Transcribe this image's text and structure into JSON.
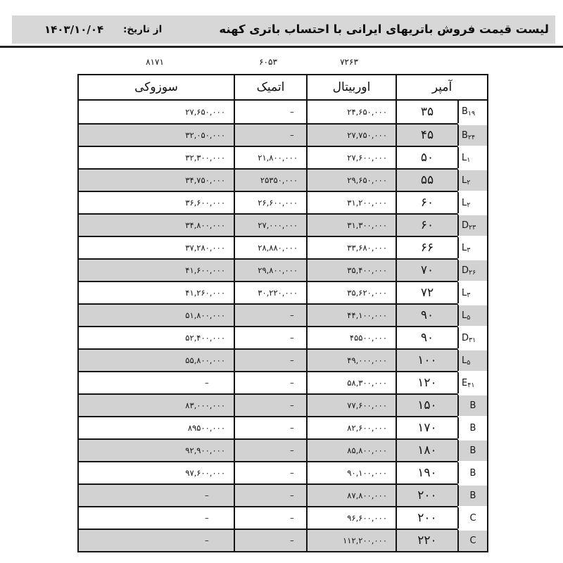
{
  "page": {
    "title": "لیست قیمت فروش باتریهای ایرانی با احتساب باتری کهنه",
    "date_label": "از تاریخ:",
    "date_value": "۱۴۰۳/۱۰/۰۴"
  },
  "codes": {
    "suzuki": "۸۱۷۱",
    "atomic": "۶۰۵۳",
    "orbital": "۷۲۶۳"
  },
  "table": {
    "headers": {
      "amp": "آمپر",
      "orbital": "اوربیتال",
      "atomic": "اتمیک",
      "suzuki": "سوزوکی"
    },
    "dash": "–",
    "rows": [
      {
        "type_letter": "B",
        "type_digits": "۱۹",
        "amp": "۳۵",
        "orbital": "۲۴,۶۵۰,۰۰۰",
        "atomic": "–",
        "suzuki": "۲۷,۶۵۰,۰۰۰"
      },
      {
        "type_letter": "B",
        "type_digits": "۲۴",
        "amp": "۴۵",
        "orbital": "۲۷,۷۵۰,۰۰۰",
        "atomic": "–",
        "suzuki": "۳۲,۰۵۰,۰۰۰"
      },
      {
        "type_letter": "L",
        "type_digits": "۱",
        "amp": "۵۰",
        "orbital": "۲۷,۶۰۰,۰۰۰",
        "atomic": "۲۱,۸۰۰,۰۰۰",
        "suzuki": "۳۲,۳۰۰,۰۰۰"
      },
      {
        "type_letter": "L",
        "type_digits": "۲",
        "amp": "۵۵",
        "orbital": "۲۹,۶۵۰,۰۰۰",
        "atomic": "۲۵۳۵۰,۰۰۰",
        "suzuki": "۳۴,۷۵۰,۰۰۰"
      },
      {
        "type_letter": "L",
        "type_digits": "۲",
        "amp": "۶۰",
        "orbital": "۳۱,۲۰۰,۰۰۰",
        "atomic": "۲۶,۶۰۰,۰۰۰",
        "suzuki": "۳۶,۶۰۰,۰۰۰"
      },
      {
        "type_letter": "D",
        "type_digits": "۲۳",
        "amp": "۶۰",
        "orbital": "۳۱,۳۰۰,۰۰۰",
        "atomic": "۲۷,۰۰۰,۰۰۰",
        "suzuki": "۳۴,۸۰۰,۰۰۰"
      },
      {
        "type_letter": "L",
        "type_digits": "۳",
        "amp": "۶۶",
        "orbital": "۳۳,۶۸۰,۰۰۰",
        "atomic": "۲۸,۸۸۰,۰۰۰",
        "suzuki": "۳۷,۲۸۰,۰۰۰"
      },
      {
        "type_letter": "D",
        "type_digits": "۲۶",
        "amp": "۷۰",
        "orbital": "۳۵,۴۰۰,۰۰۰",
        "atomic": "۲۹,۸۰۰,۰۰۰",
        "suzuki": "۴۱,۶۰۰,۰۰۰"
      },
      {
        "type_letter": "L",
        "type_digits": "۳",
        "amp": "۷۲",
        "orbital": "۳۵,۶۲۰,۰۰۰",
        "atomic": "۳۰,۲۲۰,۰۰۰",
        "suzuki": "۴۱,۲۶۰,۰۰۰"
      },
      {
        "type_letter": "L",
        "type_digits": "۵",
        "amp": "۹۰",
        "orbital": "۴۴,۱۰۰,۰۰۰",
        "atomic": "–",
        "suzuki": "۵۱,۸۰۰,۰۰۰"
      },
      {
        "type_letter": "D",
        "type_digits": "۳۱",
        "amp": "۹۰",
        "orbital": "۴۵۵۰۰,۰۰۰",
        "atomic": "–",
        "suzuki": "۵۲,۴۰۰,۰۰۰"
      },
      {
        "type_letter": "L",
        "type_digits": "۵",
        "amp": "۱۰۰",
        "orbital": "۴۹,۰۰۰,۰۰۰",
        "atomic": "–",
        "suzuki": "۵۵,۸۰۰,۰۰۰"
      },
      {
        "type_letter": "E",
        "type_digits": "۴۱",
        "amp": "۱۲۰",
        "orbital": "۵۸,۳۰۰,۰۰۰",
        "atomic": "–",
        "suzuki": "–"
      },
      {
        "type_letter": "B",
        "type_digits": "",
        "amp": "۱۵۰",
        "orbital": "۷۷,۶۰۰,۰۰۰",
        "atomic": "–",
        "suzuki": "۸۳,۰۰۰,۰۰۰"
      },
      {
        "type_letter": "B",
        "type_digits": "",
        "amp": "۱۷۰",
        "orbital": "۸۲,۶۰۰,۰۰۰",
        "atomic": "–",
        "suzuki": "۸۹۵۰۰,۰۰۰"
      },
      {
        "type_letter": "B",
        "type_digits": "",
        "amp": "۱۸۰",
        "orbital": "۸۵,۸۰۰,۰۰۰",
        "atomic": "–",
        "suzuki": "۹۲,۹۰۰,۰۰۰"
      },
      {
        "type_letter": "B",
        "type_digits": "",
        "amp": "۱۹۰",
        "orbital": "۹۰,۱۰۰,۰۰۰",
        "atomic": "–",
        "suzuki": "۹۷,۶۰۰,۰۰۰"
      },
      {
        "type_letter": "B",
        "type_digits": "",
        "amp": "۲۰۰",
        "orbital": "۸۷,۸۰۰,۰۰۰",
        "atomic": "–",
        "suzuki": "–"
      },
      {
        "type_letter": "C",
        "type_digits": "",
        "amp": "۲۰۰",
        "orbital": "۹۶,۶۰۰,۰۰۰",
        "atomic": "–",
        "suzuki": "–"
      },
      {
        "type_letter": "C",
        "type_digits": "",
        "amp": "۲۲۰",
        "orbital": "۱۱۲,۲۰۰,۰۰۰",
        "atomic": "–",
        "suzuki": "–"
      }
    ]
  },
  "colors": {
    "header_bar": "#d7d7d7",
    "shaded_row": "#d2d2d2",
    "border": "#151515"
  }
}
